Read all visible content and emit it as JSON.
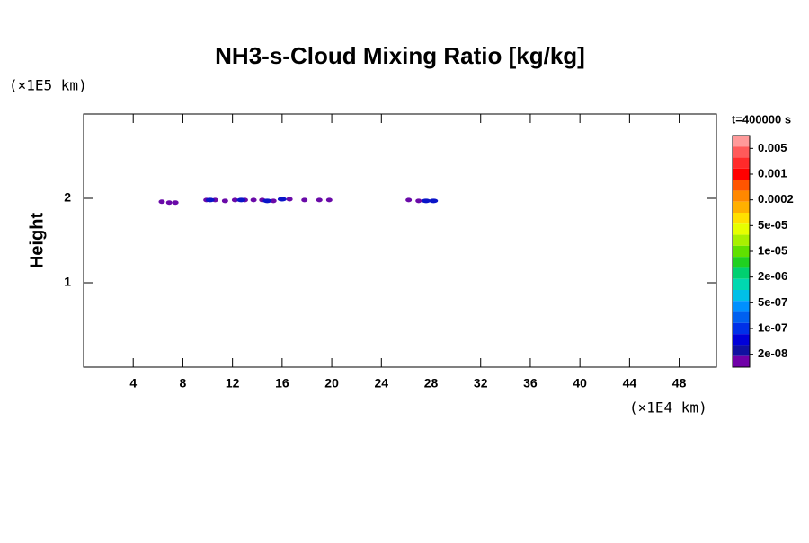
{
  "chart_data": {
    "type": "contour",
    "title": "NH3-s-Cloud Mixing Ratio [kg/kg]",
    "y_unit": "(×1E5 km)",
    "x_unit": "(×1E4 km)",
    "ylabel": "Height",
    "time_label": "t=400000 s",
    "xlim": [
      0,
      51
    ],
    "ylim": [
      0,
      3
    ],
    "xticks": [
      4,
      8,
      12,
      16,
      20,
      24,
      28,
      32,
      36,
      40,
      44,
      48
    ],
    "yticks": [
      1,
      2
    ],
    "series": [
      {
        "color": "#6a0aa8",
        "x": [
          6.3,
          6.9,
          7.4,
          9.9,
          10.6,
          11.4,
          12.2,
          13.0,
          13.7,
          14.4,
          15.3,
          16.6,
          17.8,
          19.0,
          19.8,
          26.2,
          27.0
        ],
        "y": [
          1.96,
          1.95,
          1.95,
          1.98,
          1.98,
          1.97,
          1.98,
          1.98,
          1.98,
          1.98,
          1.97,
          1.99,
          1.98,
          1.98,
          1.98,
          1.98,
          1.97
        ]
      },
      {
        "color": "#0a14c8",
        "x": [
          10.2,
          12.7,
          14.8,
          16.0,
          27.6,
          28.2
        ],
        "y": [
          1.98,
          1.98,
          1.97,
          1.99,
          1.97,
          1.97
        ]
      }
    ],
    "colorbar": {
      "colors": [
        "#ff9a9a",
        "#ff5a5a",
        "#ff2a2a",
        "#ff0000",
        "#ff5500",
        "#ff8800",
        "#ffb000",
        "#ffe000",
        "#e6ff00",
        "#a8f000",
        "#60e000",
        "#20d020",
        "#00d070",
        "#00d8b0",
        "#00c0e8",
        "#0090ff",
        "#0060f0",
        "#0030e8",
        "#0000d8",
        "#1010a0",
        "#7000a8"
      ],
      "levels": [
        0.005,
        0.001,
        0.0002,
        {
          "value": 5e-05,
          "label": "5e-05"
        },
        {
          "value": 1e-05,
          "label": "1e-05"
        },
        {
          "value": 2e-06,
          "label": "2e-06"
        },
        {
          "value": 5e-07,
          "label": "5e-07"
        },
        {
          "value": 1e-07,
          "label": "1e-07"
        },
        {
          "value": 2e-08,
          "label": "2e-08"
        }
      ]
    }
  }
}
